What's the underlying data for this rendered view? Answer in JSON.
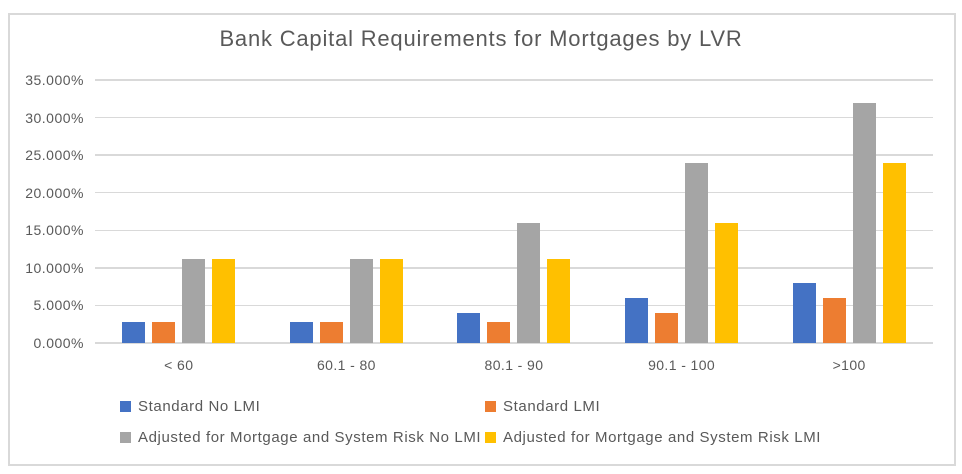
{
  "chart_data": {
    "type": "bar",
    "title": "Bank Capital Requirements for Mortgages by LVR",
    "categories": [
      "< 60",
      "60.1 - 80",
      "80.1 - 90",
      "90.1 - 100",
      ">100"
    ],
    "series": [
      {
        "name": "Standard No LMI",
        "color": "#4472C4",
        "values": [
          2.8,
          2.8,
          4.0,
          6.0,
          8.0
        ]
      },
      {
        "name": "Standard LMI",
        "color": "#ED7D31",
        "values": [
          2.8,
          2.8,
          2.8,
          4.0,
          6.0
        ]
      },
      {
        "name": "Adjusted for Mortgage and System Risk No LMI",
        "color": "#A5A5A5",
        "values": [
          11.2,
          11.2,
          16.0,
          24.0,
          32.0
        ]
      },
      {
        "name": "Adjusted for Mortgage and System Risk LMI",
        "color": "#FFC000",
        "values": [
          11.2,
          11.2,
          11.2,
          16.0,
          24.0
        ]
      }
    ],
    "values_unit": "percent",
    "xlabel": "",
    "ylabel": "",
    "y_axis": {
      "min": 0,
      "max": 35,
      "tick_step": 5,
      "tick_labels": [
        "35.000%",
        "30.000%",
        "25.000%",
        "20.000%",
        "15.000%",
        "10.000%",
        "5.000%",
        "0.000%"
      ]
    },
    "grid": "horizontal",
    "legend_position": "bottom",
    "style_colors": {
      "gridline": "#D9D9D9",
      "axis_text": "#595959",
      "title_text": "#595959",
      "frame_border": "#D9D9D9"
    }
  }
}
